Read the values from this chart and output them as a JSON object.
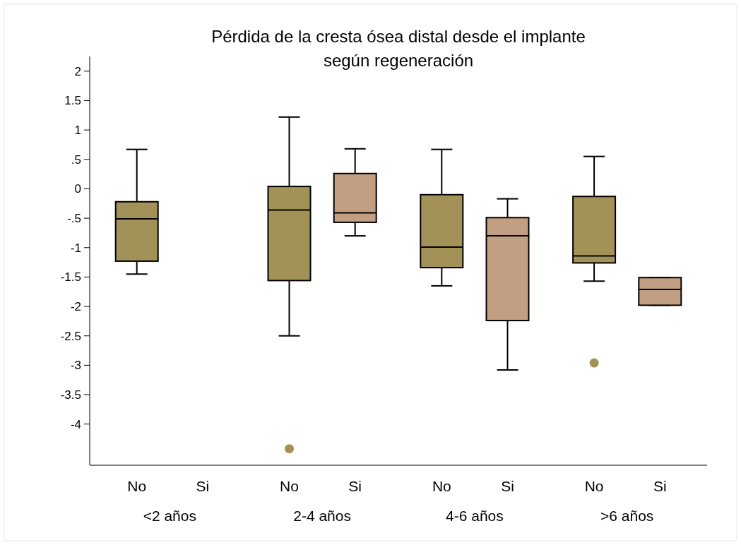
{
  "chart_data": {
    "type": "box",
    "title": "Pérdida de la cresta ósea distal desde el implante según regeneración",
    "categories": [
      "<2 años",
      "2-4 años",
      "4-6 años",
      ">6 años"
    ],
    "series": [
      {
        "name": "No",
        "color": "#a39257",
        "boxes": [
          {
            "low": -1.45,
            "q1": -1.23,
            "median": -0.51,
            "q3": -0.22,
            "high": 0.67
          },
          {
            "low": -2.5,
            "q1": -1.56,
            "median": -0.36,
            "q3": 0.04,
            "high": 1.22,
            "outliers": [
              -4.42
            ]
          },
          {
            "low": -1.65,
            "q1": -1.34,
            "median": -0.99,
            "q3": -0.1,
            "high": 0.67
          },
          {
            "low": -1.57,
            "q1": -1.26,
            "median": -1.14,
            "q3": -0.13,
            "high": 0.55,
            "outliers": [
              -2.96
            ]
          }
        ]
      },
      {
        "name": "Si",
        "color": "#c29f82",
        "boxes": [
          null,
          {
            "low": -0.8,
            "q1": -0.57,
            "median": -0.41,
            "q3": 0.26,
            "high": 0.68
          },
          {
            "low": -3.08,
            "q1": -2.24,
            "median": -0.8,
            "q3": -0.49,
            "high": -0.17
          },
          {
            "low": -1.98,
            "q1": -1.98,
            "median": -1.71,
            "q3": -1.51,
            "high": -1.51
          }
        ]
      }
    ],
    "ylim": [
      -4.7,
      2.25
    ],
    "yticks": [
      2,
      1.5,
      1,
      {
        "value": 0.5,
        "label": ".5"
      },
      0,
      {
        "value": -0.5,
        "label": "-.5"
      },
      -1,
      -1.5,
      -2,
      -2.5,
      -3,
      -3.5,
      -4
    ],
    "grid": false,
    "legend": false
  }
}
